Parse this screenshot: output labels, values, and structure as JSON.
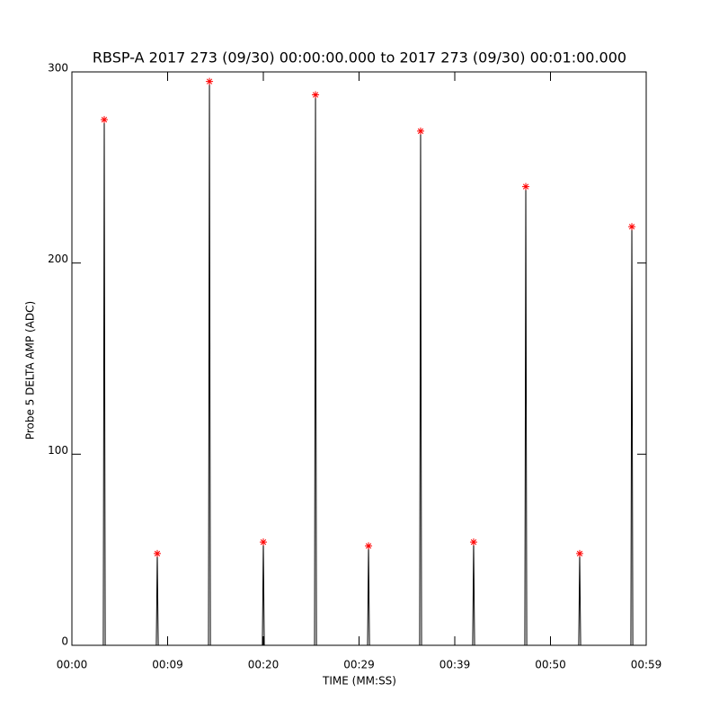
{
  "chart_data": {
    "type": "line",
    "title": "RBSP-A 2017 273 (09/30) 00:00:00.000 to 2017 273 (09/30) 00:01:00.000",
    "x_label": "TIME (MM:SS)",
    "y_label": "Probe 5 DELTA AMP (ADC)",
    "xlim": [
      0,
      60
    ],
    "ylim": [
      0,
      300
    ],
    "xticks": [
      {
        "value": 0,
        "label": "00:00"
      },
      {
        "value": 10,
        "label": "00:09"
      },
      {
        "value": 20,
        "label": "00:20"
      },
      {
        "value": 30,
        "label": "00:29"
      },
      {
        "value": 40,
        "label": "00:39"
      },
      {
        "value": 50,
        "label": "00:50"
      },
      {
        "value": 60,
        "label": "00:59"
      }
    ],
    "yticks": [
      0,
      100,
      200,
      300
    ],
    "series": [
      {
        "color": "#000000",
        "x": [
          0,
          3.28,
          3.38,
          3.48,
          8.82,
          8.92,
          9.02,
          14.27,
          14.37,
          14.47,
          19.9,
          20.0,
          20.1,
          25.35,
          25.45,
          25.55,
          30.89,
          30.99,
          31.09,
          36.33,
          36.43,
          36.53,
          41.87,
          41.97,
          42.07,
          47.32,
          47.42,
          47.52,
          52.95,
          53.05,
          53.15,
          58.4,
          58.5,
          58.6
        ],
        "values": [
          0,
          0,
          275,
          0,
          0,
          48,
          0,
          0,
          295,
          0,
          0,
          54,
          0,
          0,
          288,
          0,
          0,
          52,
          0,
          0,
          269,
          0,
          0,
          54,
          0,
          0,
          240,
          0,
          0,
          48,
          0,
          0,
          219,
          0
        ]
      },
      {
        "color": "#ff0000",
        "marker": "star",
        "x": [
          3.38,
          8.92,
          14.37,
          20.0,
          25.45,
          30.99,
          36.43,
          41.97,
          47.42,
          53.05,
          58.5
        ],
        "values": [
          275,
          48,
          295,
          54,
          288,
          52,
          269,
          54,
          240,
          48,
          219
        ]
      }
    ]
  }
}
